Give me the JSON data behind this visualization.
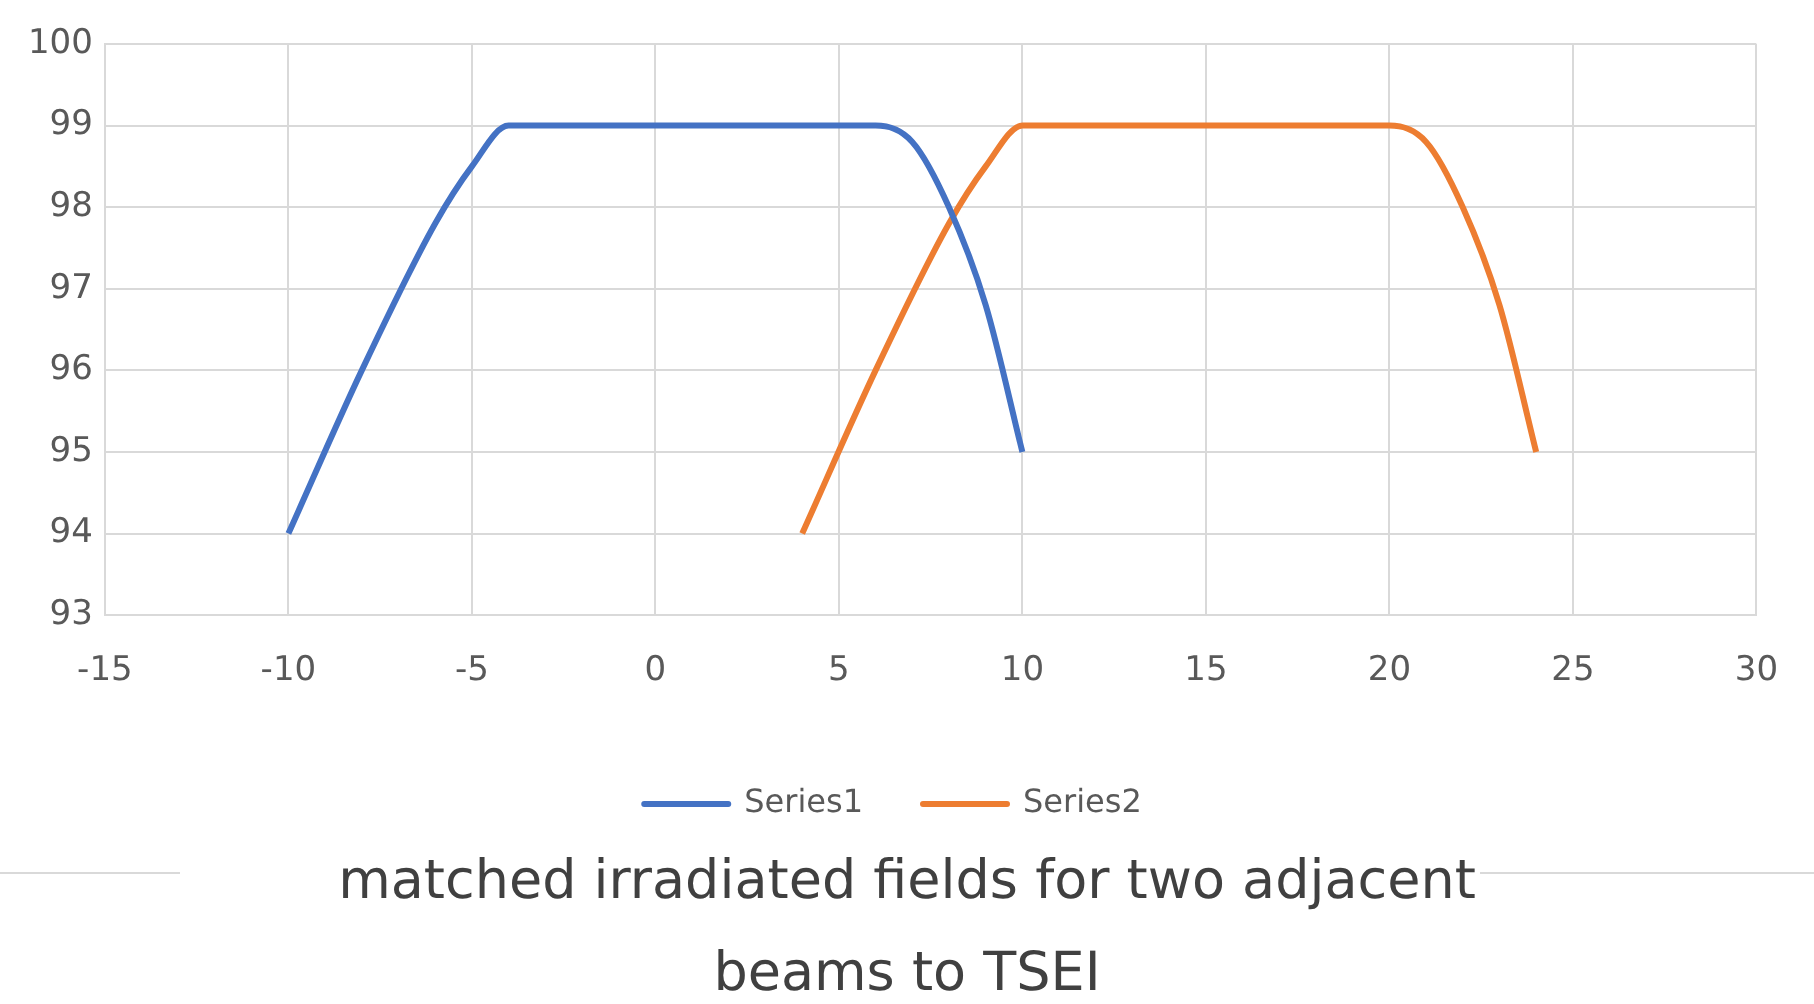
{
  "chart_data": {
    "type": "line",
    "title": "matched irradiated fields for two adjacent beams to TSEI",
    "xlim": [
      -15,
      30
    ],
    "xticks": [
      -15,
      -10,
      -5,
      0,
      5,
      10,
      15,
      20,
      25,
      30
    ],
    "ylim": [
      93,
      100
    ],
    "yticks": [
      93,
      94,
      95,
      96,
      97,
      98,
      99,
      100
    ],
    "grid": true,
    "legend": "bottom",
    "marker": "none",
    "line_style": "solid",
    "series": [
      {
        "name": "Series1",
        "color": "#4472c4",
        "x": [
          -10,
          -8,
          -6,
          -5,
          -4,
          -2,
          0,
          4,
          6,
          7,
          8,
          9,
          10
        ],
        "values": [
          94,
          96,
          97.8,
          98.5,
          99,
          99,
          99,
          99,
          99,
          98.8,
          98,
          96.8,
          95
        ]
      },
      {
        "name": "Series2",
        "color": "#ed7d31",
        "x": [
          4,
          6,
          8,
          9,
          10,
          12,
          14,
          18,
          20,
          21,
          22,
          23,
          24
        ],
        "values": [
          94,
          96,
          97.8,
          98.5,
          99,
          99,
          99,
          99,
          99,
          98.8,
          98,
          96.8,
          95
        ]
      }
    ]
  }
}
